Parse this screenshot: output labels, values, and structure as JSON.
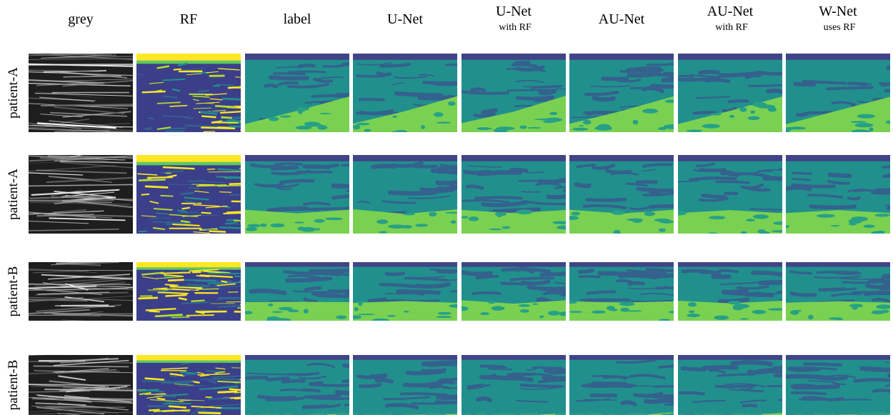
{
  "columns": [
    {
      "title": "grey"
    },
    {
      "title": "RF"
    },
    {
      "title": "label"
    },
    {
      "title": "U-Net"
    },
    {
      "title": "U-Net",
      "subtitle": "with RF"
    },
    {
      "title": "AU-Net"
    },
    {
      "title": "AU-Net",
      "subtitle": "with RF"
    },
    {
      "title": "W-Net",
      "subtitle": "uses RF"
    }
  ],
  "rows": [
    "patient-A",
    "patient-A",
    "patient-B",
    "patient-B"
  ]
}
